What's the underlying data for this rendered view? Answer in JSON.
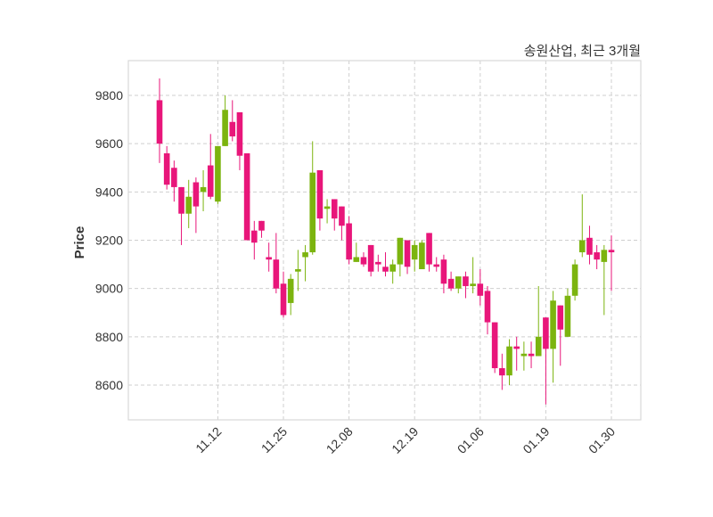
{
  "chart_data": {
    "type": "candlestick",
    "title": "송원산업, 최근 3개월",
    "xlabel": "",
    "ylabel": "Price",
    "ylim": [
      8456,
      9944
    ],
    "yticks": [
      8600,
      8800,
      9000,
      9200,
      9400,
      9600,
      9800
    ],
    "ytick_labels": [
      "8600",
      "8800",
      "9000",
      "9200",
      "9400",
      "9600",
      "9800"
    ],
    "xtick_labels": [
      {
        "index": 8,
        "label": "11.12"
      },
      {
        "index": 17,
        "label": "11.25"
      },
      {
        "index": 26,
        "label": "12.08"
      },
      {
        "index": 35,
        "label": "12.19"
      },
      {
        "index": 44,
        "label": "01.06"
      },
      {
        "index": 53,
        "label": "01.19"
      },
      {
        "index": 62,
        "label": "01.30"
      }
    ],
    "grid": true,
    "colors": {
      "up": "#7cb40f",
      "down": "#e8167a",
      "grid": "#cfcfcf",
      "frame": "#d9d9d9"
    },
    "ohlc": [
      [
        9780,
        9870,
        9520,
        9600
      ],
      [
        9560,
        9590,
        9410,
        9430
      ],
      [
        9500,
        9530,
        9360,
        9420
      ],
      [
        9420,
        9420,
        9180,
        9310
      ],
      [
        9310,
        9450,
        9250,
        9380
      ],
      [
        9440,
        9460,
        9230,
        9340
      ],
      [
        9400,
        9490,
        9320,
        9420
      ],
      [
        9510,
        9640,
        9370,
        9380
      ],
      [
        9360,
        9590,
        9350,
        9590
      ],
      [
        9590,
        9800,
        9590,
        9740
      ],
      [
        9690,
        9780,
        9610,
        9630
      ],
      [
        9730,
        9730,
        9490,
        9550
      ],
      [
        9560,
        9560,
        9200,
        9200
      ],
      [
        9240,
        9280,
        9120,
        9190
      ],
      [
        9280,
        9280,
        9210,
        9240
      ],
      [
        9130,
        9190,
        9070,
        9120
      ],
      [
        9120,
        9230,
        8980,
        9000
      ],
      [
        9020,
        9070,
        8880,
        8890
      ],
      [
        8940,
        9060,
        8890,
        9040
      ],
      [
        9070,
        9160,
        8990,
        9080
      ],
      [
        9130,
        9180,
        9030,
        9150
      ],
      [
        9150,
        9610,
        9140,
        9480
      ],
      [
        9490,
        9490,
        9240,
        9290
      ],
      [
        9330,
        9370,
        9270,
        9340
      ],
      [
        9370,
        9370,
        9240,
        9290
      ],
      [
        9340,
        9340,
        9200,
        9260
      ],
      [
        9270,
        9300,
        9100,
        9120
      ],
      [
        9110,
        9190,
        9110,
        9130
      ],
      [
        9130,
        9150,
        9090,
        9100
      ],
      [
        9180,
        9180,
        9050,
        9070
      ],
      [
        9110,
        9140,
        9070,
        9100
      ],
      [
        9090,
        9150,
        9050,
        9070
      ],
      [
        9070,
        9120,
        9020,
        9100
      ],
      [
        9100,
        9210,
        9050,
        9210
      ],
      [
        9200,
        9200,
        9060,
        9090
      ],
      [
        9120,
        9200,
        9070,
        9180
      ],
      [
        9080,
        9200,
        9080,
        9190
      ],
      [
        9230,
        9230,
        9070,
        9100
      ],
      [
        9100,
        9130,
        9070,
        9090
      ],
      [
        9120,
        9140,
        8980,
        9020
      ],
      [
        9040,
        9070,
        8990,
        9000
      ],
      [
        9000,
        9050,
        8980,
        9050
      ],
      [
        9050,
        9070,
        8960,
        9010
      ],
      [
        9010,
        9130,
        8980,
        9020
      ],
      [
        9020,
        9080,
        8930,
        8970
      ],
      [
        8990,
        9010,
        8810,
        8860
      ],
      [
        8860,
        8860,
        8650,
        8670
      ],
      [
        8670,
        8730,
        8580,
        8640
      ],
      [
        8640,
        8790,
        8600,
        8760
      ],
      [
        8760,
        8800,
        8660,
        8750
      ],
      [
        8720,
        8780,
        8660,
        8730
      ],
      [
        8730,
        8780,
        8670,
        8720
      ],
      [
        8720,
        9010,
        8720,
        8800
      ],
      [
        8880,
        8880,
        8520,
        8750
      ],
      [
        8750,
        8990,
        8610,
        8950
      ],
      [
        8930,
        8930,
        8680,
        8830
      ],
      [
        8800,
        9000,
        8800,
        8970
      ],
      [
        8970,
        9120,
        8950,
        9100
      ],
      [
        9150,
        9390,
        9130,
        9200
      ],
      [
        9210,
        9260,
        9100,
        9140
      ],
      [
        9150,
        9180,
        9080,
        9120
      ],
      [
        9110,
        9180,
        8890,
        9160
      ],
      [
        9160,
        9220,
        8990,
        9150
      ]
    ]
  }
}
